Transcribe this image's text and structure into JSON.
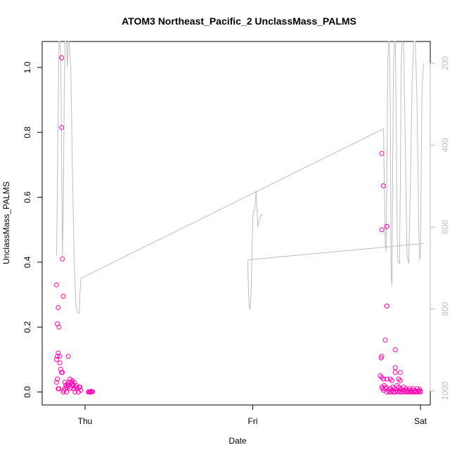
{
  "chart_data": {
    "type": "scatter",
    "title": "ATOM3 Northeast_Pacific_2 UnclassMass_PALMS",
    "xlabel": "Date",
    "ylabel": "UnclassMass_PALMS",
    "x_ticks": [
      "Thu",
      "Fri",
      "Sat"
    ],
    "y_ticks": [
      "0.0",
      "0.2",
      "0.4",
      "0.6",
      "0.8",
      "1.0"
    ],
    "y_tick_values": [
      0.0,
      0.2,
      0.4,
      0.6,
      0.8,
      1.0
    ],
    "ylim": [
      -0.04,
      1.08
    ],
    "y2_ticks": [
      "200",
      "400",
      "600",
      "800",
      "1000"
    ],
    "y2_tick_values": [
      200,
      400,
      600,
      800,
      1000
    ],
    "y2lim": [
      1040,
      100
    ],
    "x_days": [
      "Thu",
      "Fri",
      "Sat"
    ],
    "xlim": [
      -0.2,
      2.05
    ],
    "colors": {
      "points": "#ff00b4",
      "line": "#bebebe",
      "axis": "#000000",
      "right_axis": "#bebebe"
    },
    "points": [
      [
        -0.17,
        0.33
      ],
      [
        -0.165,
        0.21
      ],
      [
        -0.17,
        0.1
      ],
      [
        -0.165,
        0.11
      ],
      [
        -0.16,
        0.26
      ],
      [
        -0.155,
        0.2
      ],
      [
        -0.16,
        0.12
      ],
      [
        -0.15,
        0.11
      ],
      [
        -0.15,
        0.09
      ],
      [
        -0.145,
        0.07
      ],
      [
        -0.14,
        0.06
      ],
      [
        -0.135,
        0.06
      ],
      [
        -0.14,
        1.03
      ],
      [
        -0.14,
        0.815
      ],
      [
        -0.135,
        0.41
      ],
      [
        -0.13,
        0.295
      ],
      [
        -0.17,
        0.03
      ],
      [
        -0.165,
        0.04
      ],
      [
        -0.16,
        0.01
      ],
      [
        -0.155,
        0.01
      ],
      [
        -0.13,
        0.0
      ],
      [
        -0.125,
        0.005
      ],
      [
        -0.12,
        0.01
      ],
      [
        -0.12,
        0.03
      ],
      [
        -0.115,
        0.02
      ],
      [
        -0.11,
        0.015
      ],
      [
        -0.105,
        0.025
      ],
      [
        -0.1,
        0.02
      ],
      [
        -0.095,
        0.03
      ],
      [
        -0.09,
        0.04
      ],
      [
        -0.09,
        0.01
      ],
      [
        -0.085,
        0.015
      ],
      [
        -0.08,
        0.03
      ],
      [
        -0.075,
        0.025
      ],
      [
        -0.07,
        0.02
      ],
      [
        -0.065,
        0.01
      ],
      [
        -0.06,
        0.0
      ],
      [
        -0.055,
        0.015
      ],
      [
        -0.05,
        0.02
      ],
      [
        -0.045,
        0.01
      ],
      [
        -0.04,
        0.0
      ],
      [
        -0.035,
        0.015
      ],
      [
        -0.03,
        0.015
      ],
      [
        -0.025,
        0.005
      ],
      [
        -0.1,
        0.11
      ],
      [
        -0.11,
        0.0
      ],
      [
        -0.075,
        0.035
      ],
      [
        -0.065,
        0.03
      ],
      [
        0.02,
        0.0
      ],
      [
        0.025,
        0.0
      ],
      [
        0.03,
        0.0
      ],
      [
        0.035,
        0.002
      ],
      [
        0.04,
        0.0
      ],
      [
        0.045,
        0.001
      ],
      [
        1.77,
        0.735
      ],
      [
        1.78,
        0.635
      ],
      [
        1.77,
        0.5
      ],
      [
        1.8,
        0.51
      ],
      [
        1.8,
        0.51
      ],
      [
        1.8,
        0.265
      ],
      [
        1.8,
        0.265
      ],
      [
        1.79,
        0.16
      ],
      [
        1.77,
        0.11
      ],
      [
        1.765,
        0.105
      ],
      [
        1.76,
        0.05
      ],
      [
        1.77,
        0.045
      ],
      [
        1.78,
        0.04
      ],
      [
        1.8,
        0.04
      ],
      [
        1.82,
        0.04
      ],
      [
        1.83,
        0.035
      ],
      [
        1.85,
        0.13
      ],
      [
        1.85,
        0.075
      ],
      [
        1.85,
        0.06
      ],
      [
        1.88,
        0.06
      ],
      [
        1.87,
        0.04
      ],
      [
        1.88,
        0.035
      ],
      [
        1.77,
        0.015
      ],
      [
        1.775,
        0.01
      ],
      [
        1.78,
        0.005
      ],
      [
        1.785,
        0.02
      ],
      [
        1.79,
        0.01
      ],
      [
        1.795,
        0.015
      ],
      [
        1.8,
        0.0
      ],
      [
        1.81,
        0.005
      ],
      [
        1.815,
        0.0
      ],
      [
        1.82,
        0.01
      ],
      [
        1.825,
        0.0
      ],
      [
        1.83,
        0.005
      ],
      [
        1.835,
        0.015
      ],
      [
        1.84,
        0.0
      ],
      [
        1.845,
        0.01
      ],
      [
        1.85,
        0.0
      ],
      [
        1.855,
        0.005
      ],
      [
        1.86,
        0.02
      ],
      [
        1.865,
        0.0
      ],
      [
        1.87,
        0.015
      ],
      [
        1.875,
        0.005
      ],
      [
        1.88,
        0.0
      ],
      [
        1.885,
        0.01
      ],
      [
        1.89,
        0.0
      ],
      [
        1.895,
        0.005
      ],
      [
        1.9,
        0.015
      ],
      [
        1.905,
        0.0
      ],
      [
        1.91,
        0.005
      ],
      [
        1.915,
        0.01
      ],
      [
        1.92,
        0.0
      ],
      [
        1.925,
        0.005
      ],
      [
        1.93,
        0.0
      ],
      [
        1.935,
        0.01
      ],
      [
        1.94,
        0.0
      ],
      [
        1.945,
        0.005
      ],
      [
        1.95,
        0.0
      ],
      [
        1.955,
        0.01
      ],
      [
        1.96,
        0.0
      ],
      [
        1.965,
        0.005
      ],
      [
        1.97,
        0.0
      ],
      [
        1.975,
        0.002
      ],
      [
        1.98,
        0.01
      ],
      [
        1.985,
        0.0
      ],
      [
        1.99,
        0.003
      ],
      [
        1.995,
        0.008
      ],
      [
        2.0,
        0.0
      ],
      [
        2.0,
        0.003
      ]
    ],
    "altitude_line": [
      [
        -0.17,
        670
      ],
      [
        -0.165,
        500
      ],
      [
        -0.16,
        300
      ],
      [
        -0.155,
        130
      ],
      [
        -0.15,
        100
      ],
      [
        -0.145,
        180
      ],
      [
        -0.14,
        420
      ],
      [
        -0.135,
        670
      ],
      [
        -0.13,
        560
      ],
      [
        -0.125,
        300
      ],
      [
        -0.12,
        130
      ],
      [
        -0.115,
        100
      ],
      [
        -0.11,
        150
      ],
      [
        -0.105,
        210
      ],
      [
        -0.1,
        120
      ],
      [
        -0.095,
        100
      ],
      [
        -0.09,
        100
      ],
      [
        -0.085,
        200
      ],
      [
        -0.08,
        350
      ],
      [
        -0.075,
        470
      ],
      [
        -0.07,
        590
      ],
      [
        -0.06,
        710
      ],
      [
        -0.05,
        790
      ],
      [
        -0.045,
        805
      ],
      [
        -0.035,
        810
      ],
      [
        -0.03,
        760
      ],
      [
        -0.025,
        730
      ],
      [
        1.78,
        340
      ],
      [
        1.785,
        500
      ],
      [
        1.79,
        640
      ],
      [
        1.795,
        660
      ],
      [
        1.8,
        470
      ],
      [
        1.805,
        200
      ],
      [
        1.81,
        100
      ],
      [
        1.815,
        130
      ],
      [
        1.82,
        300
      ],
      [
        1.825,
        720
      ],
      [
        1.83,
        740
      ],
      [
        1.835,
        430
      ],
      [
        1.84,
        200
      ],
      [
        1.845,
        100
      ],
      [
        1.85,
        130
      ],
      [
        1.855,
        300
      ],
      [
        1.86,
        580
      ],
      [
        1.865,
        680
      ],
      [
        1.87,
        690
      ],
      [
        1.875,
        500
      ],
      [
        1.88,
        200
      ],
      [
        1.885,
        100
      ],
      [
        1.89,
        150
      ],
      [
        1.9,
        400
      ],
      [
        1.91,
        670
      ],
      [
        1.92,
        690
      ],
      [
        1.93,
        500
      ],
      [
        1.94,
        250
      ],
      [
        1.95,
        100
      ],
      [
        1.96,
        100
      ],
      [
        1.97,
        300
      ],
      [
        1.98,
        600
      ],
      [
        1.985,
        680
      ],
      [
        1.99,
        670
      ],
      [
        1.995,
        430
      ],
      [
        2.0,
        260
      ],
      [
        2.005,
        210
      ],
      [
        2.01,
        200
      ],
      [
        2.02,
        230
      ],
      [
        2.03,
        290
      ],
      [
        2.04,
        340
      ],
      [
        2.05,
        650
      ],
      [
        2.06,
        600
      ],
      [
        0.97,
        680
      ],
      [
        0.975,
        760
      ],
      [
        0.98,
        800
      ],
      [
        0.985,
        800
      ],
      [
        0.99,
        700
      ],
      [
        1.0,
        580
      ],
      [
        1.005,
        560
      ],
      [
        1.01,
        560
      ],
      [
        1.02,
        560
      ],
      [
        1.03,
        580
      ],
      [
        1.02,
        580
      ]
    ],
    "segments": [
      [
        [
          -0.17,
          670
        ],
        [
          -0.165,
          500
        ],
        [
          -0.16,
          300
        ],
        [
          -0.155,
          130
        ],
        [
          -0.15,
          100
        ],
        [
          -0.145,
          180
        ],
        [
          -0.14,
          420
        ],
        [
          -0.135,
          670
        ],
        [
          -0.13,
          560
        ],
        [
          -0.125,
          300
        ],
        [
          -0.12,
          130
        ],
        [
          -0.115,
          100
        ],
        [
          -0.11,
          150
        ],
        [
          -0.105,
          210
        ],
        [
          -0.1,
          120
        ],
        [
          -0.095,
          100
        ],
        [
          -0.085,
          210
        ],
        [
          -0.075,
          470
        ],
        [
          -0.065,
          680
        ],
        [
          -0.055,
          790
        ],
        [
          -0.045,
          810
        ],
        [
          -0.035,
          810
        ],
        [
          -0.03,
          760
        ],
        [
          -0.025,
          725
        ],
        [
          1.78,
          360
        ],
        [
          1.785,
          500
        ],
        [
          1.79,
          640
        ],
        [
          1.795,
          660
        ],
        [
          1.8,
          470
        ],
        [
          1.805,
          200
        ],
        [
          1.81,
          100
        ],
        [
          1.815,
          130
        ],
        [
          1.82,
          300
        ],
        [
          1.825,
          720
        ],
        [
          1.83,
          745
        ],
        [
          1.835,
          430
        ],
        [
          1.84,
          200
        ],
        [
          1.845,
          100
        ],
        [
          1.85,
          130
        ],
        [
          1.855,
          300
        ],
        [
          1.86,
          580
        ],
        [
          1.865,
          680
        ],
        [
          1.875,
          690
        ],
        [
          1.88,
          500
        ],
        [
          1.885,
          200
        ],
        [
          1.89,
          100
        ],
        [
          1.9,
          150
        ],
        [
          1.91,
          400
        ],
        [
          1.92,
          670
        ],
        [
          1.93,
          690
        ],
        [
          1.94,
          500
        ],
        [
          1.95,
          250
        ],
        [
          1.96,
          100
        ],
        [
          1.97,
          100
        ],
        [
          1.98,
          300
        ],
        [
          1.99,
          600
        ],
        [
          1.995,
          680
        ],
        [
          2.0,
          670
        ],
        [
          2.005,
          430
        ],
        [
          2.01,
          260
        ],
        [
          2.015,
          220
        ],
        [
          2.02,
          200
        ]
      ],
      [
        [
          0.97,
          680
        ],
        [
          0.975,
          760
        ],
        [
          0.98,
          800
        ],
        [
          0.985,
          800
        ],
        [
          0.99,
          760
        ],
        [
          1.0,
          580
        ],
        [
          1.005,
          560
        ],
        [
          1.01,
          560
        ],
        [
          1.015,
          540
        ],
        [
          1.02,
          510
        ],
        [
          1.03,
          600
        ],
        [
          1.04,
          580
        ],
        [
          1.05,
          570
        ],
        [
          1.06,
          570
        ]
      ],
      [
        [
          0.97,
          680
        ],
        [
          2.02,
          640
        ]
      ]
    ]
  }
}
